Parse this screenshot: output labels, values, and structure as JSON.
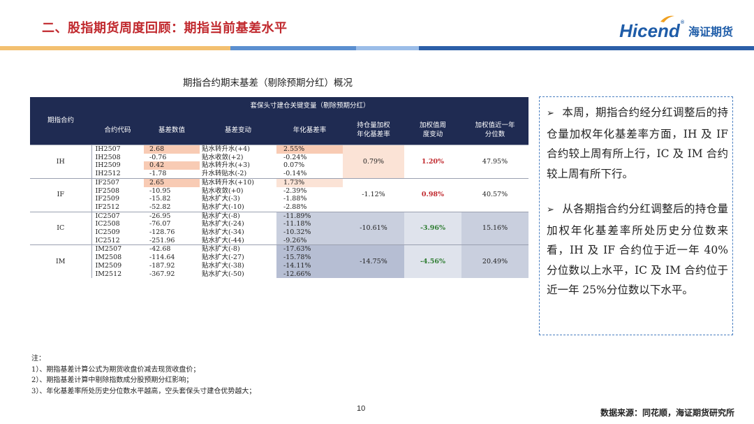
{
  "header": {
    "title": "二、股指期货周度回顾：期指当前基差水平"
  },
  "logo": {
    "en": "Hicend",
    "cn": "海证期货"
  },
  "stripe_colors": [
    "#f3c070",
    "#5b8fd0",
    "#9bbde8",
    "#2c5fa8"
  ],
  "table_title": "期指合约期末基差（剔除预期分红）概况",
  "table": {
    "header_top": "套保头寸建仓关键变量（剔除预期分红）",
    "col_group": "期指合约",
    "columns": [
      "合约代码",
      "基差数值",
      "基差变动",
      "年化基差率",
      "持仓量加权年化基差率",
      "加权值周度变动",
      "加权值近一年分位数"
    ],
    "col_lines": [
      [
        "合约代码"
      ],
      [
        "基差数值"
      ],
      [
        "基差变动"
      ],
      [
        "年化基差率"
      ],
      [
        "持仓量加权",
        "年化基差率"
      ],
      [
        "加权值周",
        "度变动"
      ],
      [
        "加权值近一年",
        "分位数"
      ]
    ],
    "groups": [
      {
        "name": "IH",
        "weighted": "0.79%",
        "weekly_change": "1.20%",
        "percentile": "47.95%",
        "rows": [
          {
            "code": "IH2507",
            "basis": "2.68",
            "change": "贴水转升水(+4)",
            "rate": "2.55%"
          },
          {
            "code": "IH2508",
            "basis": "-0.76",
            "change": "贴水收敛(+2)",
            "rate": "-0.24%"
          },
          {
            "code": "IH2509",
            "basis": "0.42",
            "change": "贴水转升水(+3)",
            "rate": "0.07%"
          },
          {
            "code": "IH2512",
            "basis": "-1.78",
            "change": "升水转贴水(-2)",
            "rate": "-0.14%"
          }
        ]
      },
      {
        "name": "IF",
        "weighted": "-1.12%",
        "weekly_change": "0.98%",
        "percentile": "40.57%",
        "rows": [
          {
            "code": "IF2507",
            "basis": "2.65",
            "change": "贴水转升水(+10)",
            "rate": "1.73%"
          },
          {
            "code": "IF2508",
            "basis": "-10.95",
            "change": "贴水收敛(+0)",
            "rate": "-2.39%"
          },
          {
            "code": "IF2509",
            "basis": "-15.82",
            "change": "贴水扩大(-3)",
            "rate": "-1.88%"
          },
          {
            "code": "IF2512",
            "basis": "-52.82",
            "change": "贴水扩大(-10)",
            "rate": "-2.88%"
          }
        ]
      },
      {
        "name": "IC",
        "weighted": "-10.61%",
        "weekly_change": "-3.96%",
        "percentile": "15.16%",
        "rows": [
          {
            "code": "IC2507",
            "basis": "-26.95",
            "change": "贴水扩大(-8)",
            "rate": "-11.89%"
          },
          {
            "code": "IC2508",
            "basis": "-76.07",
            "change": "贴水扩大(-24)",
            "rate": "-11.18%"
          },
          {
            "code": "IC2509",
            "basis": "-128.76",
            "change": "贴水扩大(-34)",
            "rate": "-10.32%"
          },
          {
            "code": "IC2512",
            "basis": "-251.96",
            "change": "贴水扩大(-44)",
            "rate": "-9.26%"
          }
        ]
      },
      {
        "name": "IM",
        "weighted": "-14.75%",
        "weekly_change": "-4.56%",
        "percentile": "20.49%",
        "rows": [
          {
            "code": "IM2507",
            "basis": "-42.68",
            "change": "贴水扩大(-8)",
            "rate": "-17.63%"
          },
          {
            "code": "IM2508",
            "basis": "-114.64",
            "change": "贴水扩大(-27)",
            "rate": "-15.78%"
          },
          {
            "code": "IM2509",
            "basis": "-187.92",
            "change": "贴水扩大(-38)",
            "rate": "-14.11%"
          },
          {
            "code": "IM2512",
            "basis": "-367.92",
            "change": "贴水扩大(-50)",
            "rate": "-12.66%"
          }
        ]
      }
    ]
  },
  "commentary": [
    "本周，期指合约经分红调整后的持仓量加权年化基差率方面，IH 及 IF 合约较上周有所上行，IC 及 IM 合约较上周有所下行。",
    "从各期指合约分红调整后的持仓量加权年化基差率所处历史分位数来看，IH 及 IF 合约位于近一年 40%分位数以上水平，IC 及 IM 合约位于近一年 25%分位数以下水平。"
  ],
  "notes": [
    "注：",
    "1）、期指基差计算公式为期货收盘价减去现货收盘价；",
    "2）、期指基差计算中剔除指数成分股预期分红影响；",
    "3）、年化基差率所处历史分位数水平越高，空头套保头寸建仓优势越大；"
  ],
  "page_number": "10",
  "source": "数据来源：同花顺，海证期货研究所"
}
